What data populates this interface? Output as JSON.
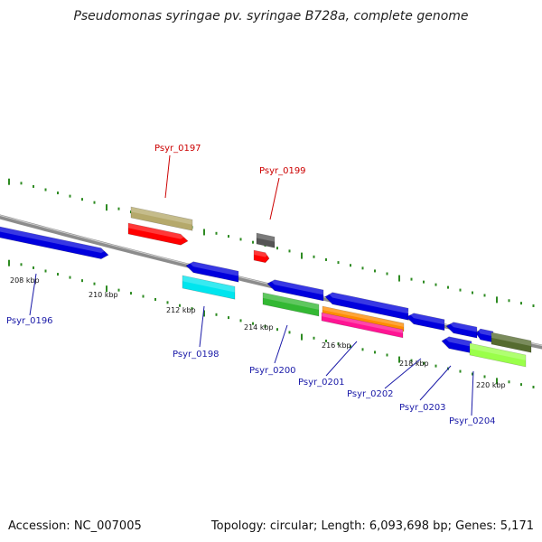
{
  "title": "Pseudomonas syringae pv. syringae B728a, complete genome",
  "footer": {
    "accession": "Accession: NC_007005",
    "summary": "Topology: circular; Length: 6,093,698 bp; Genes: 5,171"
  },
  "colors": {
    "backbone": "#8c8c8c",
    "tick": "#2e8b22",
    "label_top": "#cc0000",
    "label_bottom": "#1a1aa8"
  },
  "scale_labels": [
    "208 kbp",
    "210 kbp",
    "212 kbp",
    "214 kbp",
    "216 kbp",
    "218 kbp",
    "220 kbp"
  ],
  "gene_labels": [
    {
      "text": "Psyr_0197",
      "side": "top"
    },
    {
      "text": "Psyr_0199",
      "side": "top"
    },
    {
      "text": "Psyr_0196",
      "side": "bottom"
    },
    {
      "text": "Psyr_0198",
      "side": "bottom"
    },
    {
      "text": "Psyr_0200",
      "side": "bottom"
    },
    {
      "text": "Psyr_0201",
      "side": "bottom"
    },
    {
      "text": "Psyr_0202",
      "side": "bottom"
    },
    {
      "text": "Psyr_0203",
      "side": "bottom"
    },
    {
      "text": "Psyr_0204",
      "side": "bottom"
    }
  ],
  "features": [
    {
      "color": "#0000dd",
      "direction": "forward"
    },
    {
      "color": "#b5a96b",
      "direction": "none"
    },
    {
      "color": "#ff0000",
      "direction": "forward"
    },
    {
      "color": "#555555",
      "direction": "none"
    },
    {
      "color": "#ff0000",
      "direction": "forward"
    },
    {
      "color": "#0000dd",
      "direction": "reverse"
    },
    {
      "color": "#00e5ee",
      "direction": "none"
    },
    {
      "color": "#0000dd",
      "direction": "reverse"
    },
    {
      "color": "#33b833",
      "direction": "none"
    },
    {
      "color": "#0000dd",
      "direction": "reverse"
    },
    {
      "color": "#ff8c00",
      "direction": "none"
    },
    {
      "color": "#ff1493",
      "direction": "none"
    },
    {
      "color": "#0000dd",
      "direction": "reverse"
    },
    {
      "color": "#0000dd",
      "direction": "reverse"
    },
    {
      "color": "#0000dd",
      "direction": "reverse"
    },
    {
      "color": "#556b2f",
      "direction": "none"
    },
    {
      "color": "#0000dd",
      "direction": "reverse"
    },
    {
      "color": "#9aff4a",
      "direction": "none"
    }
  ]
}
